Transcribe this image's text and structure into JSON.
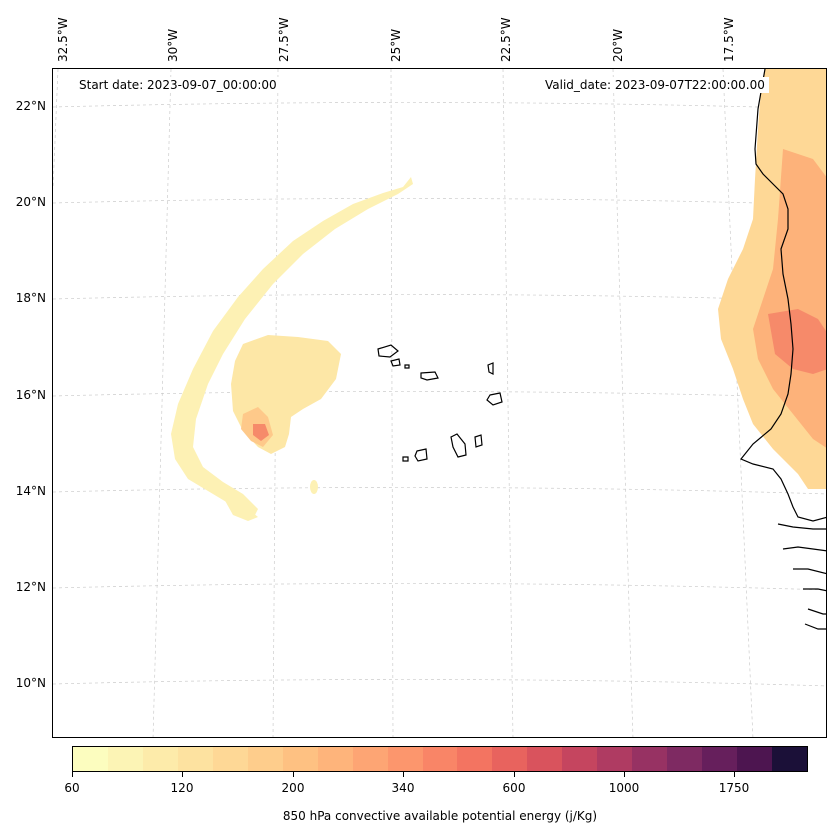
{
  "map": {
    "lon_labels": [
      "32.5°W",
      "30°W",
      "27.5°W",
      "25°W",
      "22.5°W",
      "20°W",
      "17.5°W"
    ],
    "lat_labels": [
      "22°N",
      "20°N",
      "18°N",
      "16°N",
      "14°N",
      "12°N",
      "10°N"
    ],
    "start_date": "Start date: 2023-09-07_00:00:00",
    "valid_date": "Valid_date: 2023-09-07T22:00:00.00"
  },
  "colorbar": {
    "colors": [
      "#fcfdbf",
      "#fcf4b5",
      "#fdebaa",
      "#fde2a0",
      "#fed896",
      "#fecd8c",
      "#fec182",
      "#feb47b",
      "#fda574",
      "#fc966d",
      "#f98567",
      "#f37461",
      "#e8635e",
      "#d9535d",
      "#c5455f",
      "#af3b62",
      "#973263",
      "#7e2a62",
      "#661f5c",
      "#4d1550",
      "#1b1038"
    ],
    "tick_labels": [
      "60",
      "120",
      "200",
      "340",
      "600",
      "1000",
      "1750"
    ],
    "title": "850 hPa convective available potential energy (j/Kg)"
  }
}
